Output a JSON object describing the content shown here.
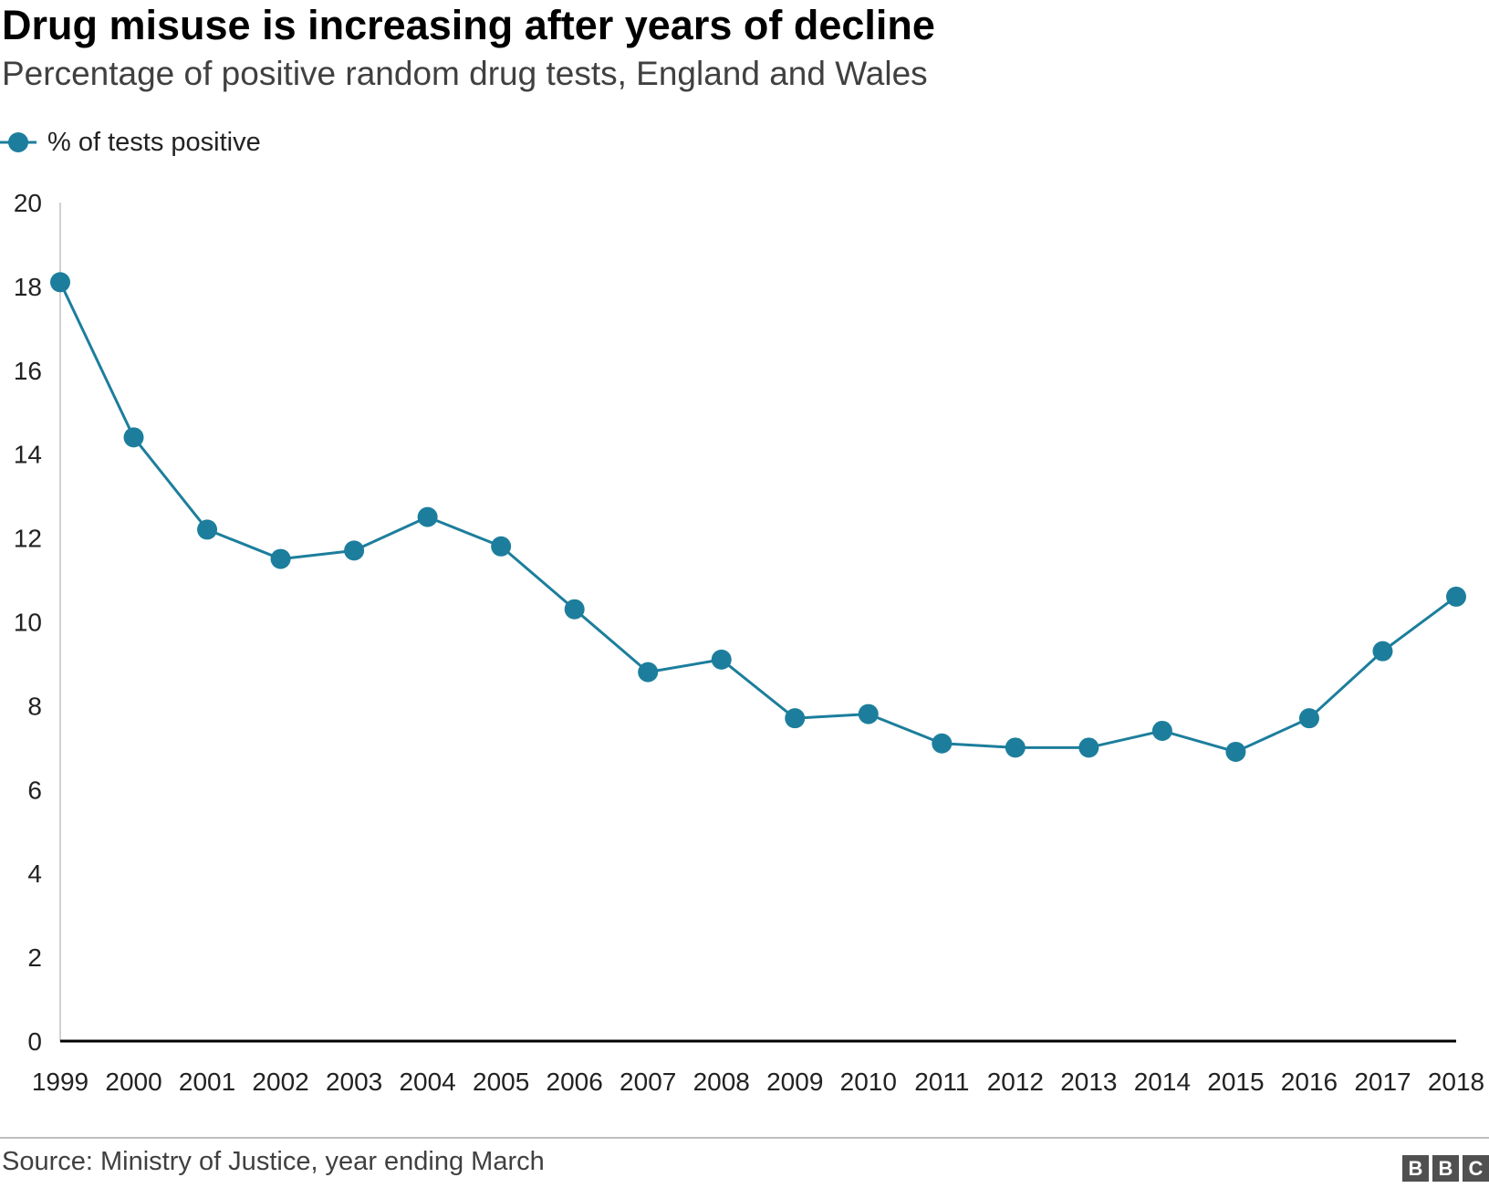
{
  "header": {
    "title": "Drug misuse is increasing after years of decline",
    "subtitle": "Percentage of positive random drug tests, England and Wales"
  },
  "legend": {
    "label": "% of tests positive"
  },
  "footer": {
    "source": "Source: Ministry of Justice, year ending March",
    "logo_letters": [
      "B",
      "B",
      "C"
    ]
  },
  "colors": {
    "series": "#1c7e9c",
    "axis": "#000000",
    "y_axis_line": "#d0d0d0"
  },
  "chart_data": {
    "type": "line",
    "title": "Drug misuse is increasing after years of decline",
    "subtitle": "Percentage of positive random drug tests, England and Wales",
    "xlabel": "",
    "ylabel": "",
    "ylim": [
      0,
      20
    ],
    "yticks": [
      0,
      2,
      4,
      6,
      8,
      10,
      12,
      14,
      16,
      18,
      20
    ],
    "grid": false,
    "legend_position": "top-left",
    "categories": [
      "1999",
      "2000",
      "2001",
      "2002",
      "2003",
      "2004",
      "2005",
      "2006",
      "2007",
      "2008",
      "2009",
      "2010",
      "2011",
      "2012",
      "2013",
      "2014",
      "2015",
      "2016",
      "2017",
      "2018"
    ],
    "series": [
      {
        "name": "% of tests positive",
        "values": [
          18.1,
          14.4,
          12.2,
          11.5,
          11.7,
          12.5,
          11.8,
          10.3,
          8.8,
          9.1,
          7.7,
          7.8,
          7.1,
          7.0,
          7.0,
          7.4,
          6.9,
          7.7,
          9.3,
          10.6
        ]
      }
    ]
  }
}
